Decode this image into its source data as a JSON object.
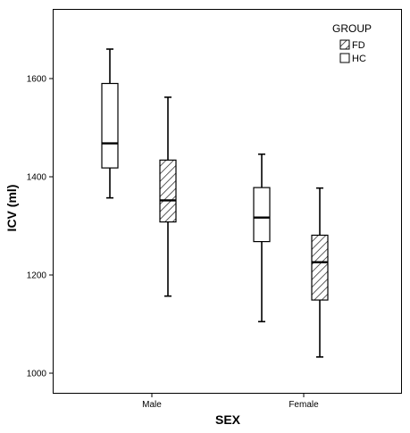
{
  "chart_data": {
    "type": "box",
    "xlabel": "SEX",
    "ylabel": "ICV (ml)",
    "categories": [
      "Male",
      "Female"
    ],
    "ylim": [
      960,
      1740
    ],
    "yticks": [
      1000,
      1200,
      1400,
      1600
    ],
    "grid": false,
    "legend": {
      "title": "GROUP",
      "placement": "top-right",
      "entries": [
        {
          "name": "FD",
          "fill": "hatched"
        },
        {
          "name": "HC",
          "fill": "white"
        }
      ]
    },
    "series": [
      {
        "name": "HC",
        "fill": "white",
        "boxes": [
          {
            "category": "Male",
            "min": 1357,
            "q1": 1418,
            "median": 1468,
            "q3": 1590,
            "max": 1660
          },
          {
            "category": "Female",
            "min": 1105,
            "q1": 1268,
            "median": 1317,
            "q3": 1378,
            "max": 1446
          }
        ]
      },
      {
        "name": "FD",
        "fill": "hatched",
        "boxes": [
          {
            "category": "Male",
            "min": 1157,
            "q1": 1308,
            "median": 1352,
            "q3": 1434,
            "max": 1562
          },
          {
            "category": "Female",
            "min": 1033,
            "q1": 1149,
            "median": 1226,
            "q3": 1281,
            "max": 1377
          }
        ]
      }
    ]
  },
  "colors": {
    "stroke": "#000000",
    "background": "#ffffff"
  }
}
